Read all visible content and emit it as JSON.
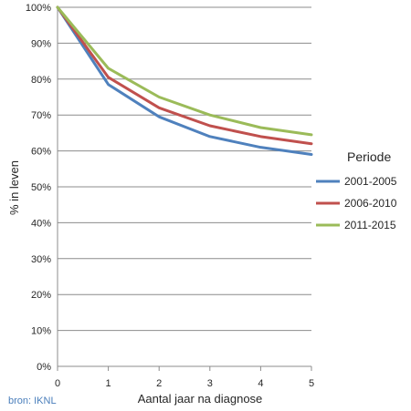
{
  "chart_data": {
    "type": "line",
    "xlabel": "Aantal jaar na diagnose",
    "ylabel": "% in leven",
    "x": [
      0,
      1,
      2,
      3,
      4,
      5
    ],
    "x_ticks": [
      "0",
      "1",
      "2",
      "3",
      "4",
      "5"
    ],
    "y_ticks": [
      "0%",
      "10%",
      "20%",
      "30%",
      "40%",
      "50%",
      "60%",
      "70%",
      "80%",
      "90%",
      "100%"
    ],
    "xlim": [
      0,
      5
    ],
    "ylim": [
      0,
      100
    ],
    "grid": true,
    "legend_title": "Periode",
    "legend_position": "right",
    "series": [
      {
        "name": "2001-2005",
        "color": "#4f81bd",
        "values": [
          100,
          78.5,
          69.5,
          64,
          61,
          59
        ]
      },
      {
        "name": "2006-2010",
        "color": "#c0504d",
        "values": [
          100,
          80.5,
          72,
          67,
          64,
          62
        ]
      },
      {
        "name": "2011-2015",
        "color": "#9bbb59",
        "values": [
          100,
          83,
          75,
          70,
          66.5,
          64.5
        ]
      }
    ]
  },
  "source": "bron: IKNL"
}
